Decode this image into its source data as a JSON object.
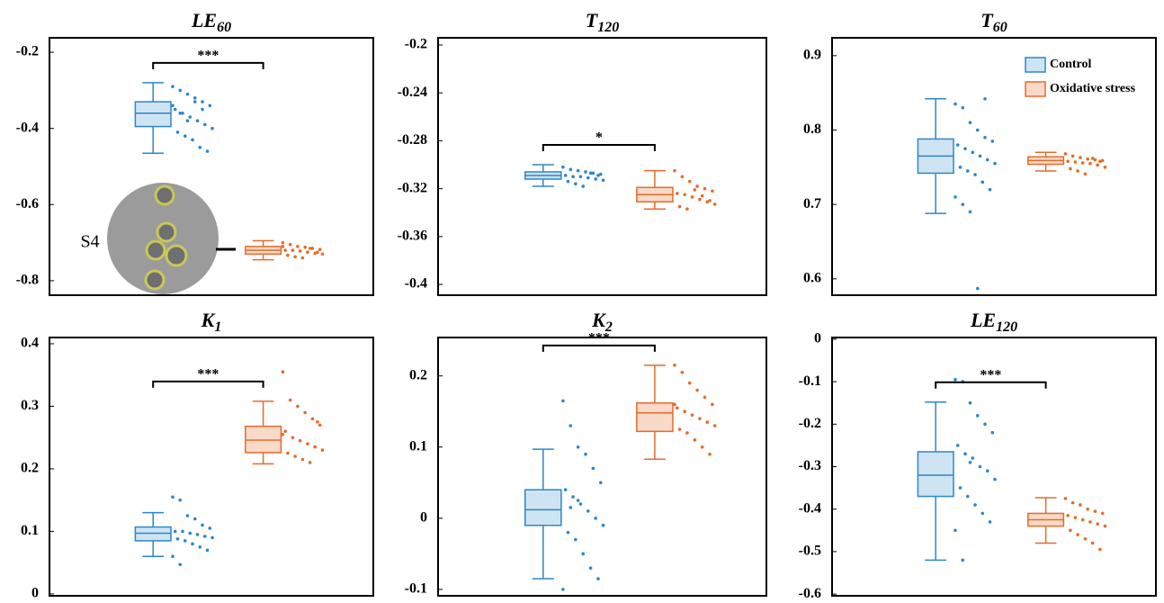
{
  "chart_data": [
    {
      "type": "box",
      "title": "LE",
      "title_subscript": "60",
      "ylim": [
        -0.838,
        -0.162
      ],
      "yticks": [
        -0.2,
        -0.4,
        -0.6,
        -0.8
      ],
      "significance": "***",
      "annotation": "S4",
      "series": [
        {
          "color": "#2e86c8",
          "fill": "#cfe4f3",
          "box": {
            "min": -0.465,
            "q1": -0.395,
            "median": -0.36,
            "q3": -0.33,
            "max": -0.28
          },
          "points": [
            -0.29,
            -0.3,
            -0.31,
            -0.32,
            -0.33,
            -0.34,
            -0.35,
            -0.36,
            -0.37,
            -0.38,
            -0.39,
            -0.4,
            -0.41,
            -0.42,
            -0.43,
            -0.45,
            -0.46,
            -0.34,
            -0.36,
            -0.38,
            -0.33,
            -0.35
          ]
        },
        {
          "color": "#e46c2c",
          "fill": "#f9d9c8",
          "box": {
            "min": -0.745,
            "q1": -0.73,
            "median": -0.72,
            "q3": -0.71,
            "max": -0.695
          },
          "points": [
            -0.7,
            -0.705,
            -0.71,
            -0.712,
            -0.715,
            -0.718,
            -0.72,
            -0.72,
            -0.722,
            -0.725,
            -0.728,
            -0.73,
            -0.733,
            -0.737,
            -0.74,
            -0.715,
            -0.725,
            -0.71
          ]
        }
      ]
    },
    {
      "type": "box",
      "title": "T",
      "title_subscript": "120",
      "ylim": [
        -0.409,
        -0.194
      ],
      "yticks": [
        -0.2,
        -0.24,
        -0.28,
        -0.32,
        -0.36,
        -0.4
      ],
      "significance": "*",
      "series": [
        {
          "color": "#2e86c8",
          "fill": "#cfe4f3",
          "box": {
            "min": -0.318,
            "q1": -0.312,
            "median": -0.309,
            "q3": -0.306,
            "max": -0.3
          },
          "points": [
            -0.302,
            -0.304,
            -0.305,
            -0.306,
            -0.307,
            -0.308,
            -0.309,
            -0.31,
            -0.31,
            -0.311,
            -0.312,
            -0.313,
            -0.314,
            -0.316,
            -0.318,
            -0.307,
            -0.309
          ]
        },
        {
          "color": "#e46c2c",
          "fill": "#f9d9c8",
          "box": {
            "min": -0.337,
            "q1": -0.331,
            "median": -0.325,
            "q3": -0.319,
            "max": -0.305
          },
          "points": [
            -0.305,
            -0.31,
            -0.314,
            -0.318,
            -0.32,
            -0.322,
            -0.324,
            -0.325,
            -0.327,
            -0.329,
            -0.331,
            -0.333,
            -0.335,
            -0.337,
            -0.321,
            -0.326,
            -0.33
          ]
        }
      ]
    },
    {
      "type": "box",
      "title": "T",
      "title_subscript": "60",
      "ylim": [
        0.578,
        0.924
      ],
      "yticks": [
        0.9,
        0.8,
        0.7,
        0.6
      ],
      "legend": "upper right",
      "series": [
        {
          "name": "Control",
          "color": "#2e86c8",
          "fill": "#cfe4f3",
          "box": {
            "min": 0.688,
            "q1": 0.742,
            "median": 0.765,
            "q3": 0.788,
            "max": 0.842
          },
          "points": [
            0.835,
            0.83,
            0.81,
            0.8,
            0.79,
            0.785,
            0.78,
            0.775,
            0.77,
            0.765,
            0.76,
            0.755,
            0.75,
            0.745,
            0.74,
            0.73,
            0.72,
            0.71,
            0.7,
            0.69,
            0.587,
            0.842
          ]
        },
        {
          "name": "Oxidative stress",
          "color": "#e46c2c",
          "fill": "#f9d9c8",
          "box": {
            "min": 0.745,
            "q1": 0.754,
            "median": 0.759,
            "q3": 0.764,
            "max": 0.77
          },
          "points": [
            0.768,
            0.765,
            0.763,
            0.761,
            0.76,
            0.759,
            0.758,
            0.757,
            0.756,
            0.755,
            0.753,
            0.75,
            0.748,
            0.745,
            0.741,
            0.762,
            0.758
          ]
        }
      ]
    },
    {
      "type": "box",
      "title": "K",
      "title_subscript": "1",
      "ylim": [
        -0.003,
        0.41
      ],
      "yticks": [
        0.4,
        0.3,
        0.2,
        0.1,
        0
      ],
      "significance": "***",
      "series": [
        {
          "color": "#2e86c8",
          "fill": "#cfe4f3",
          "box": {
            "min": 0.06,
            "q1": 0.085,
            "median": 0.097,
            "q3": 0.107,
            "max": 0.13
          },
          "points": [
            0.155,
            0.15,
            0.125,
            0.12,
            0.11,
            0.105,
            0.1,
            0.1,
            0.097,
            0.095,
            0.092,
            0.09,
            0.088,
            0.085,
            0.08,
            0.075,
            0.07,
            0.06,
            0.047
          ]
        },
        {
          "color": "#e46c2c",
          "fill": "#f9d9c8",
          "box": {
            "min": 0.208,
            "q1": 0.226,
            "median": 0.246,
            "q3": 0.268,
            "max": 0.308
          },
          "points": [
            0.355,
            0.31,
            0.3,
            0.29,
            0.28,
            0.27,
            0.26,
            0.25,
            0.245,
            0.24,
            0.235,
            0.23,
            0.225,
            0.22,
            0.215,
            0.21,
            0.275,
            0.255
          ]
        }
      ]
    },
    {
      "type": "box",
      "title": "K",
      "title_subscript": "2",
      "ylim": [
        -0.109,
        0.254
      ],
      "yticks": [
        0.2,
        0.1,
        0,
        -0.1
      ],
      "significance": "***",
      "series": [
        {
          "color": "#2e86c8",
          "fill": "#cfe4f3",
          "box": {
            "min": -0.085,
            "q1": -0.01,
            "median": 0.012,
            "q3": 0.04,
            "max": 0.097
          },
          "points": [
            0.165,
            0.13,
            0.1,
            0.09,
            0.07,
            0.05,
            0.04,
            0.03,
            0.02,
            0.01,
            0,
            -0.01,
            -0.02,
            -0.03,
            -0.05,
            -0.07,
            -0.085,
            -0.1,
            0.015,
            0.025
          ]
        },
        {
          "color": "#e46c2c",
          "fill": "#f9d9c8",
          "box": {
            "min": 0.083,
            "q1": 0.122,
            "median": 0.148,
            "q3": 0.162,
            "max": 0.215
          },
          "points": [
            0.215,
            0.205,
            0.19,
            0.18,
            0.17,
            0.16,
            0.155,
            0.15,
            0.145,
            0.14,
            0.135,
            0.13,
            0.125,
            0.12,
            0.11,
            0.1,
            0.09,
            0.16
          ]
        }
      ]
    },
    {
      "type": "box",
      "title": "LE",
      "title_subscript": "120",
      "ylim": [
        -0.604,
        0.004
      ],
      "yticks": [
        0,
        -0.1,
        -0.2,
        -0.3,
        -0.4,
        -0.5,
        -0.6
      ],
      "significance": "***",
      "series": [
        {
          "color": "#2e86c8",
          "fill": "#cfe4f3",
          "box": {
            "min": -0.52,
            "q1": -0.37,
            "median": -0.32,
            "q3": -0.265,
            "max": -0.148
          },
          "points": [
            -0.095,
            -0.1,
            -0.15,
            -0.18,
            -0.2,
            -0.22,
            -0.25,
            -0.27,
            -0.28,
            -0.3,
            -0.31,
            -0.33,
            -0.35,
            -0.37,
            -0.39,
            -0.41,
            -0.43,
            -0.45,
            -0.52,
            -0.29
          ]
        },
        {
          "color": "#e46c2c",
          "fill": "#f9d9c8",
          "box": {
            "min": -0.48,
            "q1": -0.44,
            "median": -0.425,
            "q3": -0.41,
            "max": -0.373
          },
          "points": [
            -0.375,
            -0.385,
            -0.39,
            -0.4,
            -0.405,
            -0.41,
            -0.415,
            -0.42,
            -0.425,
            -0.43,
            -0.435,
            -0.44,
            -0.45,
            -0.46,
            -0.47,
            -0.48,
            -0.495
          ]
        }
      ]
    }
  ]
}
